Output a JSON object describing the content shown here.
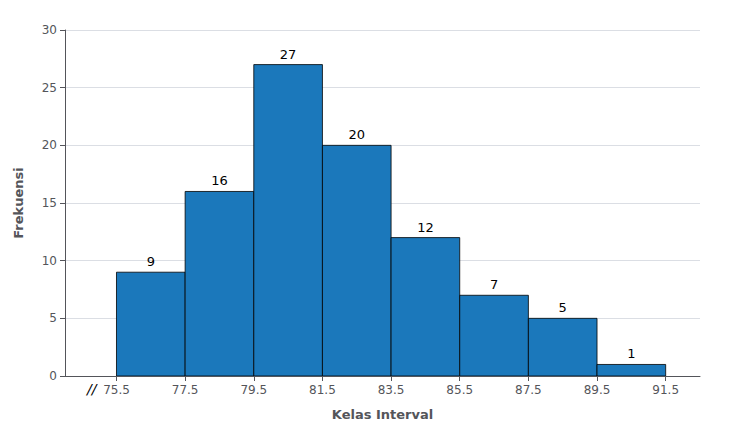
{
  "chart_data": {
    "type": "histogram",
    "bins": [
      75.5,
      77.5,
      79.5,
      81.5,
      83.5,
      85.5,
      87.5,
      89.5,
      91.5
    ],
    "values": [
      9,
      16,
      27,
      20,
      12,
      7,
      5,
      1
    ],
    "color": "#1B78BB",
    "xlabel": "Kelas Interval",
    "ylabel": "Frekuensi",
    "xlim": [
      74.0,
      92.5
    ],
    "xticks": [
      75.5,
      77.5,
      79.5,
      81.5,
      83.5,
      85.5,
      87.5,
      89.5,
      91.5
    ],
    "ylim": [
      0,
      30
    ],
    "yticks": [
      0,
      5,
      10,
      15,
      20,
      25,
      30
    ],
    "grid": true,
    "data_labels": true,
    "annotations": [
      "//"
    ]
  }
}
